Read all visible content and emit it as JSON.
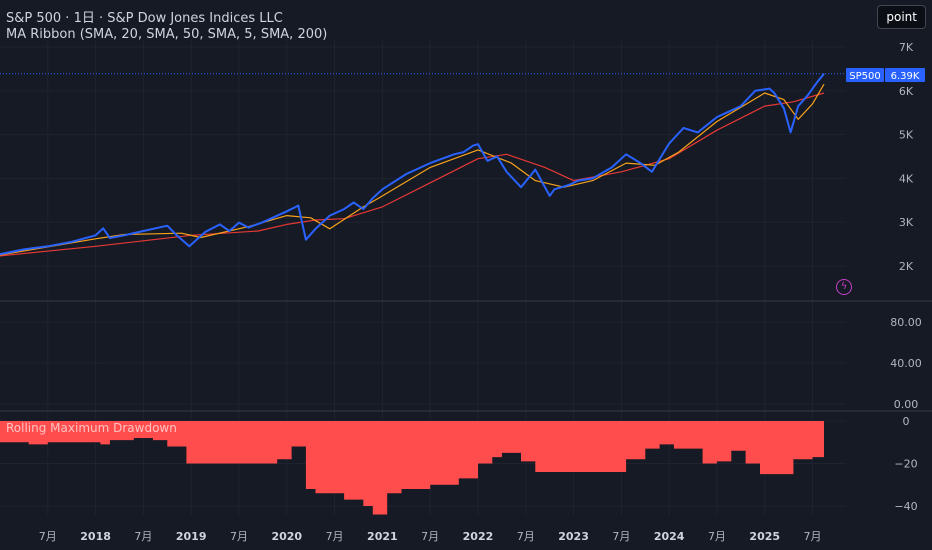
{
  "header": {
    "title": "S&P 500 · 1日 · S&P Dow Jones Indices LLC",
    "indicator": "MA Ribbon (SMA, 20, SMA, 50, SMA, 5, SMA, 200)"
  },
  "toolbar": {
    "point_label": "point"
  },
  "price_tag": {
    "symbol": "SP500",
    "value": "6.39K"
  },
  "drawdown_panel": {
    "label": "Rolling Maximum Drawdown"
  },
  "icons": {
    "flash": "flash-icon"
  },
  "colors": {
    "background": "#161a25",
    "price": "#2962ff",
    "sma_short": "#f7a21b",
    "sma_200": "#e53935",
    "drawdown": "#ff4d4d",
    "indicator_badge": "#c240c6"
  },
  "chart_data": [
    {
      "type": "line",
      "title": "S&P 500 · 1日 · S&P Dow Jones Indices LLC",
      "y_axis": {
        "min": 1500,
        "max": 7400,
        "ticks": [
          "2K",
          "3K",
          "4K",
          "5K",
          "6K",
          "7K"
        ],
        "tick_values": [
          2000,
          3000,
          4000,
          5000,
          6000,
          7000
        ]
      },
      "x_ticks": [
        {
          "label": "7月",
          "t": 2017.5
        },
        {
          "label": "2018",
          "t": 2018
        },
        {
          "label": "7月",
          "t": 2018.5
        },
        {
          "label": "2019",
          "t": 2019
        },
        {
          "label": "7月",
          "t": 2019.5
        },
        {
          "label": "2020",
          "t": 2020
        },
        {
          "label": "7月",
          "t": 2020.5
        },
        {
          "label": "2021",
          "t": 2021
        },
        {
          "label": "7月",
          "t": 2021.5
        },
        {
          "label": "2022",
          "t": 2022
        },
        {
          "label": "7月",
          "t": 2022.5
        },
        {
          "label": "2023",
          "t": 2023
        },
        {
          "label": "7月",
          "t": 2023.5
        },
        {
          "label": "2024",
          "t": 2024
        },
        {
          "label": "7月",
          "t": 2024.5
        },
        {
          "label": "2025",
          "t": 2025
        },
        {
          "label": "7月",
          "t": 2025.5
        }
      ],
      "series": [
        {
          "name": "SP500",
          "x": [
            2017.0,
            2017.25,
            2017.5,
            2017.75,
            2018.0,
            2018.08,
            2018.15,
            2018.3,
            2018.5,
            2018.75,
            2018.85,
            2018.98,
            2019.15,
            2019.3,
            2019.4,
            2019.5,
            2019.6,
            2019.75,
            2020.0,
            2020.12,
            2020.2,
            2020.3,
            2020.45,
            2020.6,
            2020.7,
            2020.8,
            2020.9,
            2021.0,
            2021.25,
            2021.5,
            2021.75,
            2021.85,
            2021.95,
            2022.0,
            2022.1,
            2022.2,
            2022.3,
            2022.45,
            2022.6,
            2022.75,
            2022.8,
            2022.95,
            2023.05,
            2023.2,
            2023.4,
            2023.55,
            2023.7,
            2023.82,
            2024.0,
            2024.15,
            2024.3,
            2024.5,
            2024.6,
            2024.75,
            2024.9,
            2025.05,
            2025.1,
            2025.2,
            2025.27,
            2025.35,
            2025.45,
            2025.55,
            2025.62
          ],
          "values": [
            2270,
            2380,
            2450,
            2550,
            2700,
            2860,
            2640,
            2700,
            2800,
            2920,
            2700,
            2450,
            2780,
            2950,
            2800,
            2990,
            2880,
            3000,
            3250,
            3380,
            2600,
            2850,
            3150,
            3300,
            3450,
            3300,
            3550,
            3750,
            4100,
            4350,
            4550,
            4600,
            4750,
            4780,
            4400,
            4500,
            4150,
            3800,
            4200,
            3600,
            3750,
            3850,
            3950,
            4000,
            4250,
            4550,
            4350,
            4150,
            4800,
            5150,
            5050,
            5400,
            5500,
            5650,
            6000,
            6050,
            5950,
            5600,
            5050,
            5650,
            5900,
            6200,
            6390
          ]
        },
        {
          "name": "SMA 200",
          "x": [
            2017.0,
            2018.0,
            2019.0,
            2019.7,
            2020.0,
            2020.3,
            2020.6,
            2021.0,
            2021.5,
            2022.0,
            2022.3,
            2022.7,
            2023.0,
            2023.5,
            2024.0,
            2024.5,
            2025.0,
            2025.3,
            2025.62
          ],
          "values": [
            2230,
            2450,
            2700,
            2800,
            2950,
            3050,
            3080,
            3350,
            3900,
            4450,
            4550,
            4250,
            3950,
            4150,
            4450,
            5100,
            5650,
            5750,
            5950
          ]
        },
        {
          "name": "SMA 50",
          "x": [
            2017.0,
            2018.0,
            2018.3,
            2018.9,
            2019.1,
            2019.6,
            2020.0,
            2020.25,
            2020.45,
            2020.8,
            2021.0,
            2021.5,
            2022.0,
            2022.35,
            2022.6,
            2022.9,
            2023.2,
            2023.55,
            2023.85,
            2024.1,
            2024.5,
            2025.0,
            2025.2,
            2025.35,
            2025.5,
            2025.62
          ],
          "values": [
            2250,
            2620,
            2720,
            2750,
            2650,
            2900,
            3150,
            3100,
            2850,
            3350,
            3600,
            4250,
            4650,
            4350,
            3950,
            3800,
            3950,
            4350,
            4300,
            4600,
            5300,
            5950,
            5800,
            5350,
            5700,
            6150
          ]
        }
      ]
    },
    {
      "type": "line",
      "title": "",
      "y_axis": {
        "min": -5,
        "max": 95,
        "ticks": [
          "0.00",
          "40.00",
          "80.00"
        ],
        "tick_values": [
          0,
          40,
          80
        ]
      },
      "series": []
    },
    {
      "type": "area",
      "title": "Rolling Maximum Drawdown",
      "y_axis": {
        "min": -45,
        "max": 0,
        "ticks": [
          "0",
          "−20",
          "−40"
        ],
        "tick_values": [
          0,
          -20,
          -40
        ]
      },
      "series": [
        {
          "name": "Rolling Maximum Drawdown",
          "x": [
            2017.0,
            2017.3,
            2017.5,
            2017.8,
            2018.05,
            2018.15,
            2018.4,
            2018.6,
            2018.75,
            2018.95,
            2019.1,
            2019.4,
            2019.6,
            2019.9,
            2020.05,
            2020.2,
            2020.3,
            2020.5,
            2020.6,
            2020.8,
            2020.9,
            2021.05,
            2021.2,
            2021.5,
            2021.8,
            2022.0,
            2022.15,
            2022.25,
            2022.45,
            2022.6,
            2022.9,
            2023.0,
            2023.3,
            2023.55,
            2023.75,
            2023.9,
            2024.05,
            2024.35,
            2024.5,
            2024.65,
            2024.8,
            2024.95,
            2025.1,
            2025.3,
            2025.5,
            2025.62
          ],
          "values": [
            -10,
            -11,
            -10,
            -10,
            -11,
            -9,
            -8,
            -9,
            -12,
            -20,
            -20,
            -20,
            -20,
            -18,
            -12,
            -32,
            -34,
            -34,
            -37,
            -40,
            -44,
            -34,
            -32,
            -30,
            -27,
            -20,
            -17,
            -15,
            -19,
            -24,
            -24,
            -24,
            -24,
            -18,
            -13,
            -11,
            -13,
            -20,
            -19,
            -14,
            -20,
            -25,
            -25,
            -18,
            -17,
            -21
          ]
        }
      ]
    }
  ]
}
